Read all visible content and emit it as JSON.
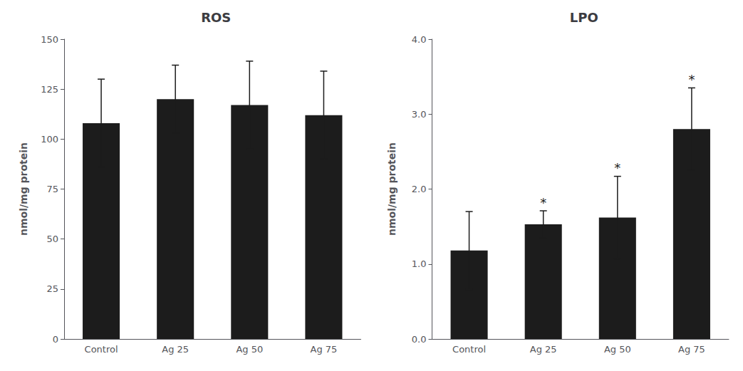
{
  "chart_data": [
    {
      "type": "bar",
      "title": "ROS",
      "categories": [
        "Control",
        "Ag 25",
        "Ag 50",
        "Ag 75"
      ],
      "values": [
        108,
        120,
        117,
        112
      ],
      "errors": [
        22,
        17,
        22,
        22
      ],
      "ylabel": "nmol/mg protein",
      "color": "#1c1c1c",
      "ylim": [
        0,
        150
      ],
      "yticks": [
        0,
        25,
        50,
        75,
        100,
        125,
        150
      ],
      "grid": false
    },
    {
      "type": "bar",
      "title": "LPO",
      "categories": [
        "Control",
        "Ag 25",
        "Ag 50",
        "Ag 75"
      ],
      "values": [
        1.18,
        1.53,
        1.62,
        2.8
      ],
      "errors": [
        0.52,
        0.18,
        0.55,
        0.55
      ],
      "ylabel": "nmol/mg protein",
      "color": "#1c1c1c",
      "ylim": [
        0.0,
        4.0
      ],
      "yticks": [
        {
          "value": 0.0,
          "label": "0.0"
        },
        {
          "value": 1.0,
          "label": "1.0"
        },
        {
          "value": 2.0,
          "label": "2.0"
        },
        {
          "value": 3.0,
          "label": "3.0"
        },
        {
          "value": 4.0,
          "label": "4.0"
        }
      ],
      "grid": false,
      "annotations": [
        {
          "x": "Ag 25",
          "text": "*"
        },
        {
          "x": "Ag 50",
          "text": "*"
        },
        {
          "x": "Ag 75",
          "text": "*"
        }
      ]
    }
  ]
}
